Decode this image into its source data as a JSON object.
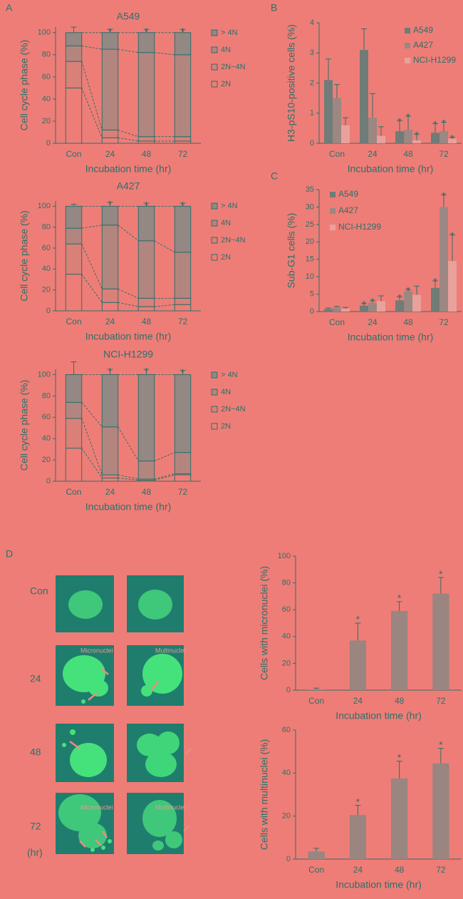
{
  "panel_labels": [
    "A",
    "B",
    "C",
    "D"
  ],
  "images": {
    "row_labels": [
      "Con",
      "24",
      "48",
      "72",
      "(hr)"
    ],
    "micronuclei_label": "Micronuclei",
    "multinuclei_label": "Multinuclei"
  },
  "chart_data": [
    {
      "type": "stacked_bar",
      "title": "A549",
      "xlabel": "Incubation time (hr)",
      "ylabel": "Cell cycle phase (%)",
      "categories": [
        "Con",
        "24",
        "48",
        "72"
      ],
      "ylim": [
        0,
        105
      ],
      "yticks": [
        0,
        20,
        40,
        60,
        80,
        100
      ],
      "series": [
        {
          "name": "2N",
          "color": "#ef7d77",
          "values": [
            50,
            5,
            2,
            2
          ]
        },
        {
          "name": "2N~4N",
          "color": "#d98079",
          "values": [
            24,
            7,
            4,
            4
          ]
        },
        {
          "name": "4N",
          "color": "#b3857f",
          "values": [
            14,
            73,
            76,
            74
          ]
        },
        {
          "name": "> 4N",
          "color": "#938884",
          "values": [
            12,
            15,
            18,
            20
          ],
          "errors": [
            5,
            3,
            3,
            3
          ]
        }
      ],
      "annotations": [
        null,
        "*",
        "*",
        "*"
      ]
    },
    {
      "type": "stacked_bar",
      "title": "A427",
      "xlabel": "Incubation time (hr)",
      "ylabel": "Cell cycle phase (%)",
      "categories": [
        "Con",
        "24",
        "48",
        "72"
      ],
      "ylim": [
        0,
        105
      ],
      "yticks": [
        0,
        20,
        40,
        60,
        80,
        100
      ],
      "series": [
        {
          "name": "2N",
          "color": "#ef7d77",
          "values": [
            35,
            8,
            4,
            6
          ]
        },
        {
          "name": "2N~4N",
          "color": "#d98079",
          "values": [
            29,
            13,
            8,
            6
          ]
        },
        {
          "name": "4N",
          "color": "#b3857f",
          "values": [
            15,
            61,
            55,
            44
          ]
        },
        {
          "name": "> 4N",
          "color": "#938884",
          "values": [
            21,
            18,
            33,
            44
          ],
          "errors": [
            2,
            4,
            3,
            3
          ]
        }
      ],
      "annotations": [
        null,
        "*",
        "*",
        "*"
      ]
    },
    {
      "type": "stacked_bar",
      "title": "NCI-H1299",
      "xlabel": "Incubation time (hr)",
      "ylabel": "Cell cycle phase (%)",
      "categories": [
        "Con",
        "24",
        "48",
        "72"
      ],
      "ylim": [
        0,
        105
      ],
      "yticks": [
        0,
        20,
        40,
        60,
        80,
        100
      ],
      "series": [
        {
          "name": "2N",
          "color": "#ef7d77",
          "values": [
            31,
            3,
            1,
            6
          ]
        },
        {
          "name": "2N~4N",
          "color": "#d98079",
          "values": [
            28,
            3,
            1,
            1
          ]
        },
        {
          "name": "4N",
          "color": "#b3857f",
          "values": [
            15,
            45,
            17,
            20
          ]
        },
        {
          "name": "> 4N",
          "color": "#938884",
          "values": [
            26,
            49,
            81,
            73
          ],
          "errors": [
            12,
            5,
            5,
            4
          ]
        }
      ],
      "annotations": [
        null,
        "*",
        "*",
        "*"
      ]
    },
    {
      "type": "grouped_bar",
      "xlabel": "Incubation time (hr)",
      "ylabel": "H3-pS10-positive cells (%)",
      "categories": [
        "Con",
        "24",
        "48",
        "72"
      ],
      "ylim": [
        0,
        4
      ],
      "yticks": [
        0,
        1,
        2,
        3,
        4
      ],
      "series": [
        {
          "name": "A549",
          "color": "#6f7c78",
          "values": [
            2.1,
            3.1,
            0.4,
            0.35
          ],
          "errors": [
            0.7,
            0.7,
            0.35,
            0.3
          ],
          "annotations": [
            null,
            null,
            "*",
            "*"
          ]
        },
        {
          "name": "A427",
          "color": "#9c8782",
          "values": [
            1.5,
            0.85,
            0.45,
            0.4
          ],
          "errors": [
            0.45,
            0.8,
            0.45,
            0.3
          ],
          "annotations": [
            null,
            null,
            "*",
            "*"
          ]
        },
        {
          "name": "NCI-H1299",
          "color": "#e9a19b",
          "values": [
            0.6,
            0.25,
            0.1,
            0.15
          ],
          "errors": [
            0.25,
            0.3,
            0.2,
            0.05
          ],
          "annotations": [
            null,
            null,
            "*",
            "*"
          ]
        }
      ]
    },
    {
      "type": "grouped_bar",
      "xlabel": "Incubation time (hr)",
      "ylabel": "Sub-G1 cells (%)",
      "categories": [
        "Con",
        "24",
        "48",
        "72"
      ],
      "ylim": [
        0,
        35
      ],
      "yticks": [
        0,
        5,
        10,
        15,
        20,
        25,
        30,
        35
      ],
      "series": [
        {
          "name": "A549",
          "color": "#6f7c78",
          "values": [
            0.7,
            1.7,
            3.2,
            6.8
          ],
          "errors": [
            0.3,
            0.6,
            1,
            2
          ],
          "annotations": [
            null,
            "*",
            "*",
            "*"
          ]
        },
        {
          "name": "A427",
          "color": "#9c8782",
          "values": [
            1.2,
            2.5,
            5.8,
            30
          ],
          "errors": [
            0.3,
            0.6,
            0.5,
            3.5
          ],
          "annotations": [
            null,
            "*",
            "*",
            "*"
          ]
        },
        {
          "name": "NCI-H1299",
          "color": "#e9a19b",
          "values": [
            0.8,
            3,
            4.8,
            14.5
          ],
          "errors": [
            0.4,
            1.5,
            2.5,
            7.5
          ],
          "annotations": [
            null,
            null,
            null,
            "*"
          ]
        }
      ]
    },
    {
      "type": "bar",
      "xlabel": "Incubation time (hr)",
      "ylabel": "Cells with micronuclei (%)",
      "color": "#9a8580",
      "categories": [
        "Con",
        "24",
        "48",
        "72"
      ],
      "ylim": [
        0,
        100
      ],
      "yticks": [
        0,
        20,
        40,
        60,
        80,
        100
      ],
      "values": [
        0.5,
        37,
        59,
        72
      ],
      "errors": [
        1,
        13,
        7,
        12
      ],
      "annotations": [
        null,
        "*",
        "*",
        "*"
      ]
    },
    {
      "type": "bar",
      "xlabel": "Incubation time (hr)",
      "ylabel": "Cells with multinuclei (%)",
      "color": "#9a8580",
      "categories": [
        "Con",
        "24",
        "48",
        "72"
      ],
      "ylim": [
        0,
        60
      ],
      "yticks": [
        0,
        20,
        40,
        60
      ],
      "values": [
        3.5,
        20.5,
        37.5,
        44.5
      ],
      "errors": [
        1.5,
        4.5,
        8,
        7
      ],
      "annotations": [
        null,
        "*",
        "*",
        "*"
      ]
    }
  ]
}
